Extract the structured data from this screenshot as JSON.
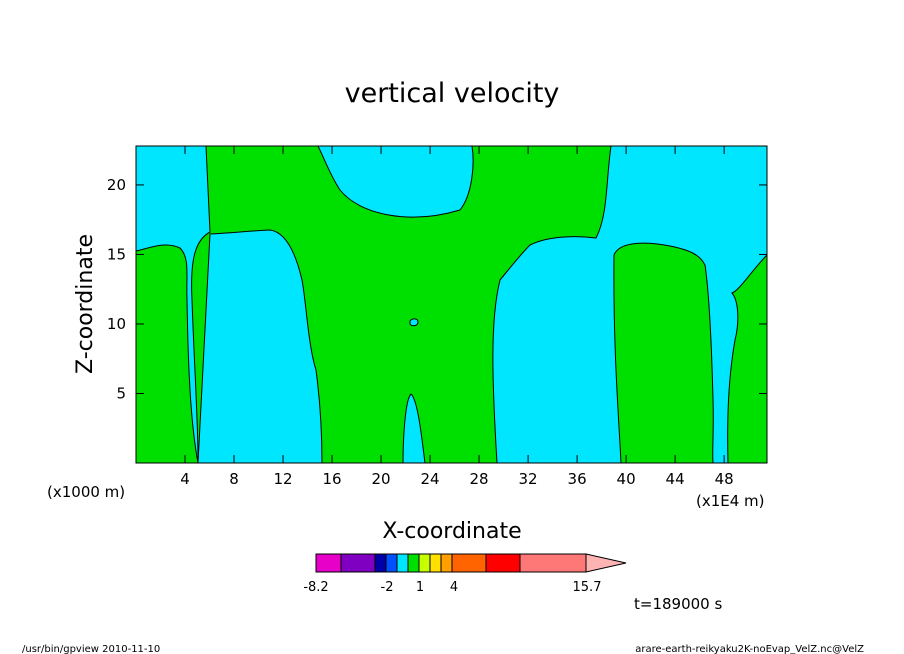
{
  "chart_data": {
    "type": "contour",
    "title": "vertical velocity",
    "xlabel": "X-coordinate",
    "ylabel": "Z-coordinate",
    "x_unit": "(x1E4 m)",
    "z_unit": "(x1000 m)",
    "xlim": [
      0,
      51.5
    ],
    "ylim": [
      0,
      22.8
    ],
    "x_ticks": [
      4,
      8,
      12,
      16,
      20,
      24,
      28,
      32,
      36,
      40,
      44,
      48
    ],
    "y_ticks": [
      5,
      10,
      15,
      20
    ],
    "colors": {
      "negative_small": "#00e6ff",
      "positive_small": "#00e000",
      "outline": "#000000",
      "frame": "#000000"
    },
    "colorbar": {
      "labels": [
        "-8.2",
        "-2",
        "1",
        "4",
        "15.7"
      ],
      "colors": [
        "#e600c8",
        "#7f00c0",
        "#0000a8",
        "#0050ff",
        "#00e6ff",
        "#00e000",
        "#c8ff00",
        "#ffe000",
        "#ffa000",
        "#ff6400",
        "#ff0000",
        "#ff7878",
        "#ffb4b4"
      ]
    },
    "regions": [
      {
        "value_class": "negative_small",
        "description": "background"
      },
      {
        "value_class": "positive_small",
        "x_range": [
          0,
          5
        ],
        "z_range": [
          0,
          15.8
        ]
      },
      {
        "value_class": "positive_small",
        "x_range": [
          5.5,
          38.5
        ],
        "z_range": [
          0,
          22.8
        ]
      },
      {
        "value_class": "positive_small",
        "x_range": [
          39,
          46.5
        ],
        "z_range": [
          0,
          15.5
        ]
      },
      {
        "value_class": "positive_small",
        "x_range": [
          46.8,
          51.5
        ],
        "z_range": [
          0,
          15
        ]
      }
    ],
    "time": "t=189000 s"
  },
  "footer": {
    "left": "/usr/bin/gpview  2010-11-10",
    "right": "arare-earth-reikyaku2K-noEvap_VelZ.nc@VelZ"
  }
}
